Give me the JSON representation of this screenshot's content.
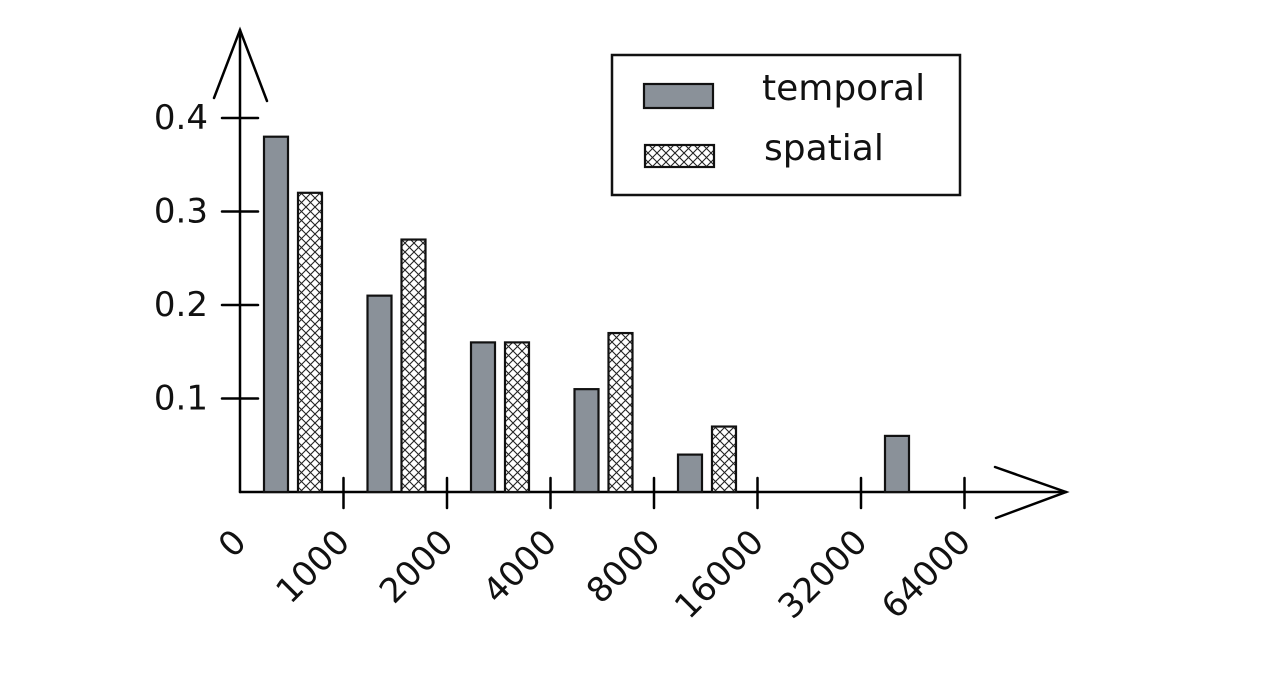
{
  "chart_data": {
    "type": "bar",
    "categories": [
      "0-1000",
      "1000-2000",
      "2000-4000",
      "4000-8000",
      "8000-16000",
      "16000-32000",
      "32000-64000"
    ],
    "xtick_labels": [
      "0",
      "1000",
      "2000",
      "4000",
      "8000",
      "16000",
      "32000",
      "64000"
    ],
    "yticks": [
      0.1,
      0.2,
      0.3,
      0.4
    ],
    "ytick_labels": [
      "0.1",
      "0.2",
      "0.3",
      "0.4"
    ],
    "ylim": [
      0,
      0.45
    ],
    "series": [
      {
        "name": "temporal",
        "values": [
          0.38,
          0.21,
          0.16,
          0.11,
          0.04,
          null,
          0.06
        ],
        "color": "#8a9199",
        "pattern": "solid"
      },
      {
        "name": "spatial",
        "values": [
          0.32,
          0.27,
          0.16,
          0.17,
          0.07,
          null,
          null
        ],
        "color": "#ffffff",
        "pattern": "crosshatch"
      }
    ],
    "legend": {
      "position": "top-right",
      "entries": [
        "temporal",
        "spatial"
      ]
    },
    "grid": false
  }
}
